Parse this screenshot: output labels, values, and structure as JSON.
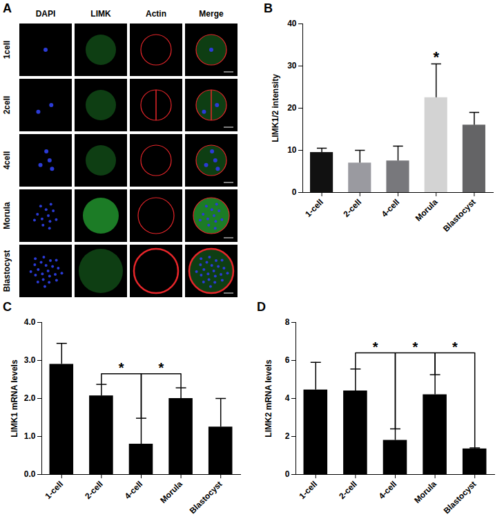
{
  "image_panel": {
    "panel": "A",
    "columns": [
      "DAPI",
      "LIMK",
      "Actin",
      "Merge"
    ],
    "rows": [
      "1cell",
      "2cell",
      "4cell",
      "Morula",
      "Blastocyst"
    ]
  },
  "chart_data": [
    {
      "type": "bar",
      "panel": "B",
      "ylabel": "LIMK1/2 intensity",
      "categories": [
        "1-cell",
        "2-cell",
        "4-cell",
        "Morula",
        "Blastocyst"
      ],
      "values": [
        9.5,
        7,
        7.5,
        22.5,
        16
      ],
      "errors": [
        1,
        3,
        3.5,
        8,
        3
      ],
      "colors": [
        "#111111",
        "#9a9aa0",
        "#78787c",
        "#d3d3d3",
        "#646466"
      ],
      "ylim": [
        0,
        40
      ],
      "yticks": [
        0,
        10,
        20,
        30,
        40
      ],
      "annotations": [
        {
          "category": "Morula",
          "label": "*"
        }
      ]
    },
    {
      "type": "bar",
      "panel": "C",
      "ylabel": "LIMK1 mRNA levels",
      "categories": [
        "1-cell",
        "2-cell",
        "4-cell",
        "Morula",
        "Blastocyst"
      ],
      "values": [
        2.9,
        2.07,
        0.8,
        2.0,
        1.25
      ],
      "errors": [
        0.55,
        0.3,
        0.68,
        0.28,
        0.75
      ],
      "color": "#000000",
      "ylim": [
        0,
        4
      ],
      "yticks": [
        0,
        1,
        2,
        3,
        4
      ],
      "bracket_y": 2.65,
      "comparisons": [
        {
          "from": "2-cell",
          "to": "4-cell",
          "label": "*"
        },
        {
          "from": "4-cell",
          "to": "Morula",
          "label": "*"
        }
      ]
    },
    {
      "type": "bar",
      "panel": "D",
      "ylabel": "LIMK2 mRNA levels",
      "categories": [
        "1-cell",
        "2-cell",
        "4-cell",
        "Morula",
        "Blastocyst"
      ],
      "values": [
        4.45,
        4.4,
        1.8,
        4.2,
        1.35
      ],
      "errors": [
        1.45,
        1.15,
        0.6,
        1.05,
        0.05
      ],
      "color": "#000000",
      "ylim": [
        0,
        8
      ],
      "yticks": [
        0,
        2,
        4,
        6,
        8
      ],
      "bracket_y": 6.4,
      "comparisons": [
        {
          "from": "2-cell",
          "to": "4-cell",
          "label": "*"
        },
        {
          "from": "4-cell",
          "to": "Morula",
          "label": "*"
        },
        {
          "from": "Morula",
          "to": "Blastocyst",
          "label": "*"
        }
      ]
    }
  ]
}
